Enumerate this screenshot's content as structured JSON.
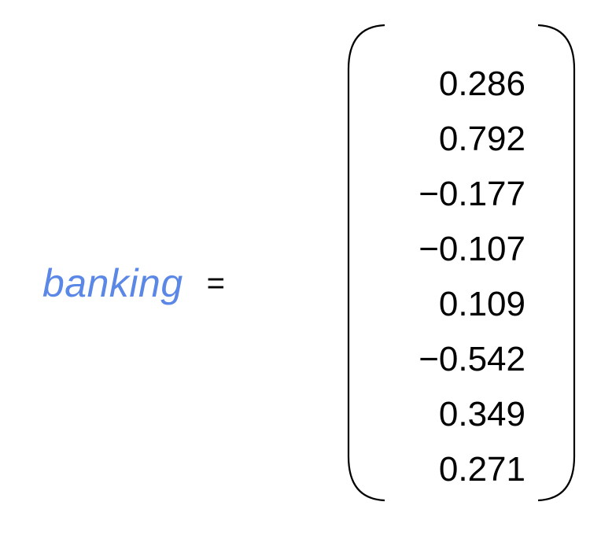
{
  "equation": {
    "lhs_word": "banking",
    "equals_sign": "=",
    "vector": [
      "0.286",
      "0.792",
      "−0.177",
      "−0.107",
      "0.109",
      "−0.542",
      "0.349",
      "0.271"
    ]
  },
  "colors": {
    "word": "#5b87e6",
    "text": "#000000",
    "background": "#ffffff"
  }
}
